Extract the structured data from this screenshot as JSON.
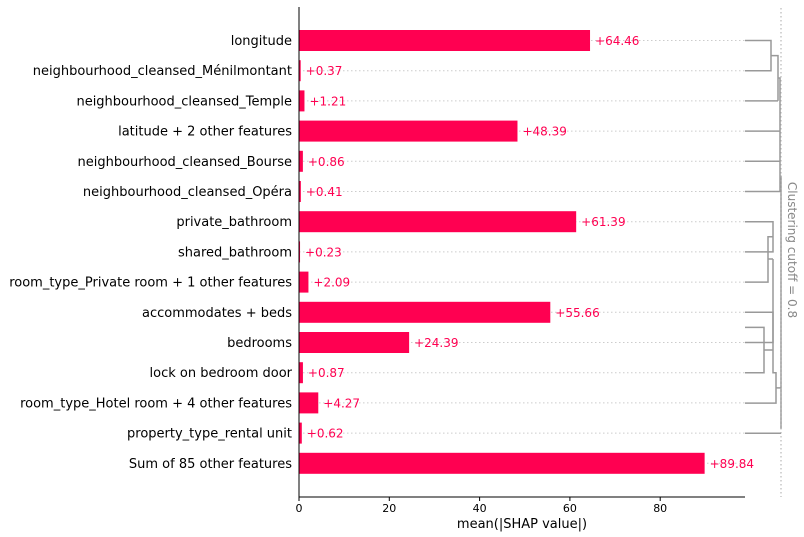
{
  "chart_data": {
    "type": "bar",
    "orientation": "horizontal",
    "categories": [
      "longitude",
      "neighbourhood_cleansed_Ménilmontant",
      "neighbourhood_cleansed_Temple",
      "latitude + 2 other features",
      "neighbourhood_cleansed_Bourse",
      "neighbourhood_cleansed_Opéra",
      "private_bathroom",
      "shared_bathroom",
      "room_type_Private room + 1 other features",
      "accommodates + beds",
      "bedrooms",
      "lock on bedroom door",
      "room_type_Hotel room + 4 other features",
      "property_type_rental unit",
      "Sum of 85 other features"
    ],
    "values": [
      64.46,
      0.37,
      1.21,
      48.39,
      0.86,
      0.41,
      61.39,
      0.23,
      2.09,
      55.66,
      24.39,
      0.87,
      4.27,
      0.62,
      89.84
    ],
    "value_labels": [
      "+64.46",
      "+0.37",
      "+1.21",
      "+48.39",
      "+0.86",
      "+0.41",
      "+61.39",
      "+0.23",
      "+2.09",
      "+55.66",
      "+24.39",
      "+0.87",
      "+4.27",
      "+0.62",
      "+89.84"
    ],
    "xlabel": "mean(|SHAP value|)",
    "xticks": [
      "0",
      "20",
      "40",
      "60",
      "80"
    ],
    "xlim": [
      0,
      99
    ],
    "bar_color": "#ff0051",
    "clustering_label": "Clustering cutoff = 0.8",
    "dendrogram_color": "#999999"
  }
}
